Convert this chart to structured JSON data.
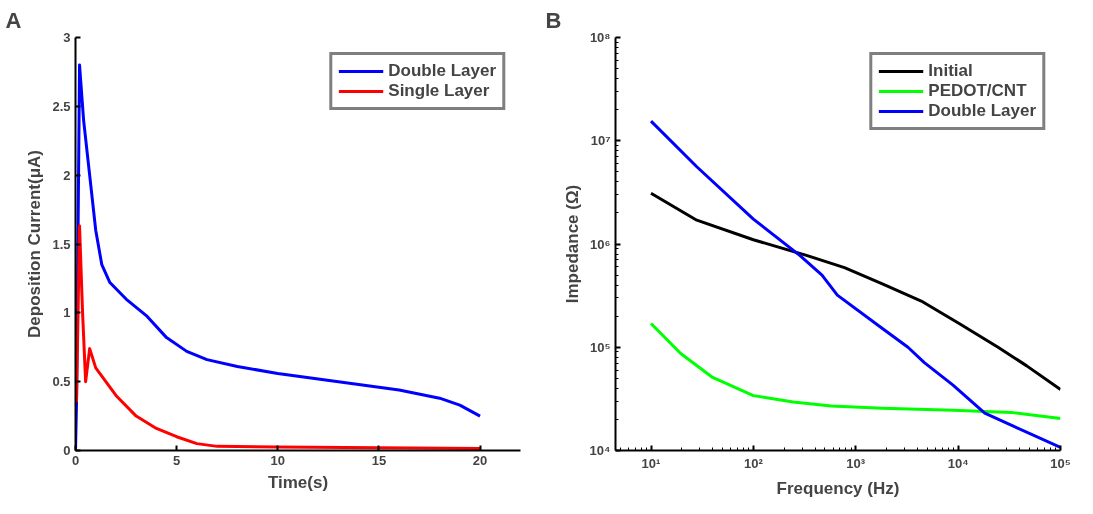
{
  "chart_data": [
    {
      "type": "line",
      "title": "A",
      "xlabel": "Time(s)",
      "ylabel": "Deposition Current(μA)",
      "xlim": [
        0,
        22
      ],
      "ylim": [
        0,
        3
      ],
      "xticks": [
        0,
        5,
        10,
        15,
        20
      ],
      "yticks": [
        0,
        0.5,
        1,
        1.5,
        2,
        2.5,
        3
      ],
      "grid": false,
      "legend": "top right",
      "series": [
        {
          "name": "Double Layer",
          "color": "#0000ff",
          "x": [
            0,
            0.05,
            0.2,
            0.4,
            0.7,
            1.0,
            1.3,
            1.7,
            2.5,
            3.5,
            4.5,
            5.5,
            6.5,
            8,
            10,
            12,
            14,
            16,
            18,
            19,
            20
          ],
          "values": [
            0,
            0.35,
            2.8,
            2.4,
            2.0,
            1.6,
            1.35,
            1.22,
            1.1,
            0.98,
            0.82,
            0.72,
            0.66,
            0.61,
            0.56,
            0.52,
            0.48,
            0.44,
            0.38,
            0.33,
            0.25
          ]
        },
        {
          "name": "Single Layer",
          "color": "#ff0000",
          "x": [
            0.05,
            0.2,
            0.35,
            0.5,
            0.7,
            1,
            2,
            3,
            4,
            5,
            6,
            7,
            10,
            15,
            20
          ],
          "values": [
            0.35,
            1.63,
            1.0,
            0.5,
            0.74,
            0.6,
            0.4,
            0.25,
            0.16,
            0.1,
            0.05,
            0.03,
            0.025,
            0.02,
            0.015
          ]
        }
      ]
    },
    {
      "type": "line",
      "title": "B",
      "xlabel": "Frequency (Hz)",
      "ylabel": "Impedance (Ω)",
      "log": "xy",
      "xlim": [
        4.5,
        100000
      ],
      "ylim": [
        10000,
        100000000
      ],
      "grid": false,
      "legend": "top right",
      "xticks": [
        {
          "value": 10,
          "label": "10¹"
        },
        {
          "value": 100,
          "label": "10²"
        },
        {
          "value": 1000,
          "label": "10³"
        },
        {
          "value": 10000,
          "label": "10⁴"
        },
        {
          "value": 100000,
          "label": "10⁵"
        }
      ],
      "yticks": [
        {
          "value": 10000,
          "label": "10⁴"
        },
        {
          "value": 100000,
          "label": "10⁵"
        },
        {
          "value": 1000000,
          "label": "10⁶"
        },
        {
          "value": 10000000,
          "label": "10⁷"
        },
        {
          "value": 100000000,
          "label": "10⁸"
        }
      ],
      "series": [
        {
          "name": "Initial",
          "color": "#000000",
          "x": [
            10,
            28,
            100,
            324,
            776,
            1820,
            4365,
            10230,
            24550,
            46800,
            100000
          ],
          "values": [
            3100000,
            1700000,
            1100000,
            780000,
            590000,
            410000,
            280000,
            170000,
            100000,
            66000,
            39000
          ]
        },
        {
          "name": "PEDOT/CNT",
          "color": "#00ff00",
          "x": [
            10,
            19.5,
            40,
            100,
            245,
            575,
            1820,
            8913,
            33100,
            100000
          ],
          "values": [
            170000,
            87000,
            51000,
            34000,
            29500,
            27000,
            25700,
            24500,
            23400,
            20400
          ]
        },
        {
          "name": "Double Layer",
          "color": "#0000ff",
          "x": [
            10,
            28,
            100,
            282,
            468,
            661,
            1700,
            3236,
            4677,
            8913,
            18200,
            35500,
            100000
          ],
          "values": [
            15500000,
            5600000,
            1740000,
            780000,
            500000,
            320000,
            160000,
            100000,
            71000,
            43000,
            23000,
            17000,
            10700
          ]
        }
      ]
    }
  ]
}
